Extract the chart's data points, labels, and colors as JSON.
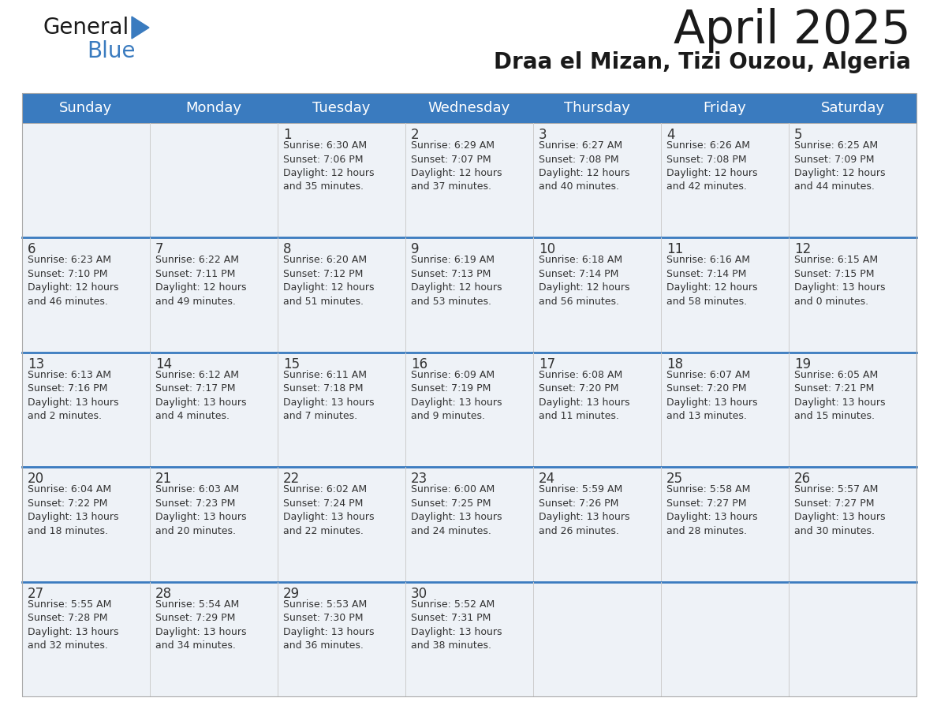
{
  "title": "April 2025",
  "subtitle": "Draa el Mizan, Tizi Ouzou, Algeria",
  "days_of_week": [
    "Sunday",
    "Monday",
    "Tuesday",
    "Wednesday",
    "Thursday",
    "Friday",
    "Saturday"
  ],
  "header_bg": "#3a7bbf",
  "header_text": "#ffffff",
  "row_bg": "#eef2f7",
  "separator_color": "#3a7bbf",
  "cell_sep_color": "#cccccc",
  "text_color": "#333333",
  "title_color": "#1a1a1a",
  "logo_text_color": "#1a1a1a",
  "logo_blue_color": "#3a7bbf",
  "calendar_data": [
    [
      {
        "day": "",
        "info": ""
      },
      {
        "day": "",
        "info": ""
      },
      {
        "day": "1",
        "info": "Sunrise: 6:30 AM\nSunset: 7:06 PM\nDaylight: 12 hours\nand 35 minutes."
      },
      {
        "day": "2",
        "info": "Sunrise: 6:29 AM\nSunset: 7:07 PM\nDaylight: 12 hours\nand 37 minutes."
      },
      {
        "day": "3",
        "info": "Sunrise: 6:27 AM\nSunset: 7:08 PM\nDaylight: 12 hours\nand 40 minutes."
      },
      {
        "day": "4",
        "info": "Sunrise: 6:26 AM\nSunset: 7:08 PM\nDaylight: 12 hours\nand 42 minutes."
      },
      {
        "day": "5",
        "info": "Sunrise: 6:25 AM\nSunset: 7:09 PM\nDaylight: 12 hours\nand 44 minutes."
      }
    ],
    [
      {
        "day": "6",
        "info": "Sunrise: 6:23 AM\nSunset: 7:10 PM\nDaylight: 12 hours\nand 46 minutes."
      },
      {
        "day": "7",
        "info": "Sunrise: 6:22 AM\nSunset: 7:11 PM\nDaylight: 12 hours\nand 49 minutes."
      },
      {
        "day": "8",
        "info": "Sunrise: 6:20 AM\nSunset: 7:12 PM\nDaylight: 12 hours\nand 51 minutes."
      },
      {
        "day": "9",
        "info": "Sunrise: 6:19 AM\nSunset: 7:13 PM\nDaylight: 12 hours\nand 53 minutes."
      },
      {
        "day": "10",
        "info": "Sunrise: 6:18 AM\nSunset: 7:14 PM\nDaylight: 12 hours\nand 56 minutes."
      },
      {
        "day": "11",
        "info": "Sunrise: 6:16 AM\nSunset: 7:14 PM\nDaylight: 12 hours\nand 58 minutes."
      },
      {
        "day": "12",
        "info": "Sunrise: 6:15 AM\nSunset: 7:15 PM\nDaylight: 13 hours\nand 0 minutes."
      }
    ],
    [
      {
        "day": "13",
        "info": "Sunrise: 6:13 AM\nSunset: 7:16 PM\nDaylight: 13 hours\nand 2 minutes."
      },
      {
        "day": "14",
        "info": "Sunrise: 6:12 AM\nSunset: 7:17 PM\nDaylight: 13 hours\nand 4 minutes."
      },
      {
        "day": "15",
        "info": "Sunrise: 6:11 AM\nSunset: 7:18 PM\nDaylight: 13 hours\nand 7 minutes."
      },
      {
        "day": "16",
        "info": "Sunrise: 6:09 AM\nSunset: 7:19 PM\nDaylight: 13 hours\nand 9 minutes."
      },
      {
        "day": "17",
        "info": "Sunrise: 6:08 AM\nSunset: 7:20 PM\nDaylight: 13 hours\nand 11 minutes."
      },
      {
        "day": "18",
        "info": "Sunrise: 6:07 AM\nSunset: 7:20 PM\nDaylight: 13 hours\nand 13 minutes."
      },
      {
        "day": "19",
        "info": "Sunrise: 6:05 AM\nSunset: 7:21 PM\nDaylight: 13 hours\nand 15 minutes."
      }
    ],
    [
      {
        "day": "20",
        "info": "Sunrise: 6:04 AM\nSunset: 7:22 PM\nDaylight: 13 hours\nand 18 minutes."
      },
      {
        "day": "21",
        "info": "Sunrise: 6:03 AM\nSunset: 7:23 PM\nDaylight: 13 hours\nand 20 minutes."
      },
      {
        "day": "22",
        "info": "Sunrise: 6:02 AM\nSunset: 7:24 PM\nDaylight: 13 hours\nand 22 minutes."
      },
      {
        "day": "23",
        "info": "Sunrise: 6:00 AM\nSunset: 7:25 PM\nDaylight: 13 hours\nand 24 minutes."
      },
      {
        "day": "24",
        "info": "Sunrise: 5:59 AM\nSunset: 7:26 PM\nDaylight: 13 hours\nand 26 minutes."
      },
      {
        "day": "25",
        "info": "Sunrise: 5:58 AM\nSunset: 7:27 PM\nDaylight: 13 hours\nand 28 minutes."
      },
      {
        "day": "26",
        "info": "Sunrise: 5:57 AM\nSunset: 7:27 PM\nDaylight: 13 hours\nand 30 minutes."
      }
    ],
    [
      {
        "day": "27",
        "info": "Sunrise: 5:55 AM\nSunset: 7:28 PM\nDaylight: 13 hours\nand 32 minutes."
      },
      {
        "day": "28",
        "info": "Sunrise: 5:54 AM\nSunset: 7:29 PM\nDaylight: 13 hours\nand 34 minutes."
      },
      {
        "day": "29",
        "info": "Sunrise: 5:53 AM\nSunset: 7:30 PM\nDaylight: 13 hours\nand 36 minutes."
      },
      {
        "day": "30",
        "info": "Sunrise: 5:52 AM\nSunset: 7:31 PM\nDaylight: 13 hours\nand 38 minutes."
      },
      {
        "day": "",
        "info": ""
      },
      {
        "day": "",
        "info": ""
      },
      {
        "day": "",
        "info": ""
      }
    ]
  ]
}
